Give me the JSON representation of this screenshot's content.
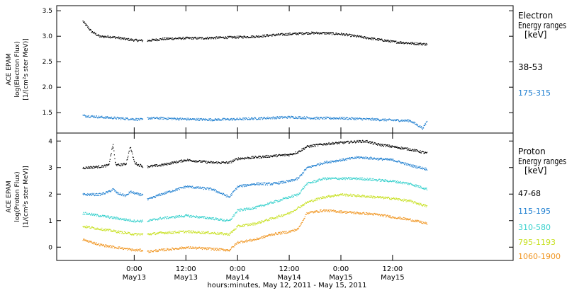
{
  "chart_data": [
    {
      "type": "scatter",
      "panel": "electron",
      "ylabel_lines": [
        "ACE EPAM",
        "log(Electron Flux)",
        "[1/(cm²s ster MeV)]"
      ],
      "ylim": [
        1.1,
        3.6
      ],
      "yticks": [
        "1.5",
        "2.0",
        "2.5",
        "3.0",
        "3.5"
      ],
      "ytick_values": [
        1.5,
        2.0,
        2.5,
        3.0,
        3.5
      ],
      "legend_title": [
        "Electron",
        "Energy ranges",
        "[keV]"
      ],
      "series": [
        {
          "name": "38-53",
          "color": "#000000",
          "x": [
            0,
            1,
            2,
            3,
            4,
            6,
            8,
            10,
            12,
            14,
            15,
            16,
            17,
            18,
            20,
            24,
            28,
            32,
            36,
            40,
            44,
            48,
            52,
            56,
            60,
            64,
            68,
            72,
            76,
            80
          ],
          "y": [
            3.3,
            3.2,
            3.1,
            3.05,
            3.0,
            3.0,
            2.98,
            2.95,
            2.93,
            2.92,
            2.92,
            2.93,
            2.94,
            2.95,
            2.96,
            2.97,
            2.97,
            2.98,
            2.99,
            3.0,
            3.03,
            3.05,
            3.07,
            3.07,
            3.05,
            3.0,
            2.95,
            2.9,
            2.87,
            2.85
          ]
        },
        {
          "name": "175-315",
          "color": "#1f7fd0",
          "x": [
            0,
            4,
            8,
            12,
            14,
            15,
            18,
            24,
            30,
            36,
            42,
            48,
            54,
            60,
            66,
            72,
            76,
            79,
            80
          ],
          "y": [
            1.45,
            1.42,
            1.4,
            1.38,
            1.37,
            1.4,
            1.4,
            1.38,
            1.37,
            1.38,
            1.4,
            1.42,
            1.4,
            1.4,
            1.38,
            1.36,
            1.35,
            1.2,
            1.36
          ]
        }
      ]
    },
    {
      "type": "scatter",
      "panel": "proton",
      "ylabel_lines": [
        "ACE EPAM",
        "log(Proton Flux)",
        "[1/(cm²s ster MeV)]"
      ],
      "ylim": [
        -0.5,
        4.3
      ],
      "yticks": [
        "0",
        "1",
        "2",
        "3",
        "4"
      ],
      "ytick_values": [
        0,
        1,
        2,
        3,
        4
      ],
      "legend_title": [
        "Proton",
        "Energy ranges",
        "[keV]"
      ],
      "series": [
        {
          "name": "47-68",
          "color": "#000000",
          "x": [
            0,
            4,
            6,
            7,
            7.5,
            8,
            10,
            11,
            12,
            13,
            13.5,
            14,
            15,
            18,
            24,
            30,
            34,
            36,
            40,
            44,
            48,
            50,
            52,
            56,
            60,
            64,
            66,
            68,
            72,
            76,
            80
          ],
          "y": [
            3.0,
            3.05,
            3.1,
            3.9,
            3.2,
            3.1,
            3.15,
            3.8,
            3.2,
            3.1,
            3.1,
            3.05,
            3.05,
            3.1,
            3.3,
            3.2,
            3.2,
            3.35,
            3.4,
            3.45,
            3.5,
            3.6,
            3.8,
            3.9,
            3.95,
            4.0,
            4.0,
            3.9,
            3.8,
            3.7,
            3.55
          ]
        },
        {
          "name": "115-195",
          "color": "#1f7fd0",
          "x": [
            0,
            4,
            6,
            7,
            8,
            10,
            11,
            12,
            13,
            14,
            15,
            18,
            24,
            30,
            34,
            36,
            40,
            44,
            48,
            50,
            52,
            56,
            60,
            64,
            68,
            72,
            76,
            80
          ],
          "y": [
            2.0,
            2.0,
            2.1,
            2.2,
            2.05,
            1.95,
            2.1,
            2.05,
            2.0,
            2.0,
            1.8,
            2.0,
            2.3,
            2.2,
            1.9,
            2.3,
            2.4,
            2.4,
            2.5,
            2.6,
            3.0,
            3.2,
            3.3,
            3.4,
            3.35,
            3.3,
            3.1,
            2.95
          ]
        },
        {
          "name": "310-580",
          "color": "#35d0cc",
          "x": [
            0,
            4,
            8,
            12,
            14,
            15,
            18,
            24,
            30,
            34,
            36,
            40,
            44,
            48,
            50,
            52,
            56,
            60,
            64,
            68,
            72,
            76,
            80
          ],
          "y": [
            1.3,
            1.2,
            1.1,
            1.0,
            1.0,
            1.0,
            1.1,
            1.2,
            1.1,
            1.0,
            1.4,
            1.5,
            1.7,
            1.9,
            2.0,
            2.4,
            2.6,
            2.6,
            2.6,
            2.55,
            2.5,
            2.4,
            2.2
          ]
        },
        {
          "name": "795-1193",
          "color": "#c7e020",
          "x": [
            0,
            4,
            8,
            12,
            14,
            15,
            18,
            24,
            30,
            34,
            36,
            40,
            44,
            48,
            50,
            52,
            56,
            60,
            64,
            68,
            72,
            76,
            80
          ],
          "y": [
            0.8,
            0.7,
            0.6,
            0.5,
            0.5,
            0.5,
            0.55,
            0.6,
            0.55,
            0.5,
            0.8,
            0.9,
            1.1,
            1.3,
            1.5,
            1.7,
            1.9,
            2.0,
            1.95,
            1.9,
            1.85,
            1.75,
            1.55
          ]
        },
        {
          "name": "1060-1900",
          "color": "#f0941e",
          "x": [
            0,
            4,
            8,
            12,
            14,
            15,
            18,
            24,
            30,
            34,
            36,
            40,
            44,
            48,
            50,
            52,
            56,
            60,
            64,
            68,
            72,
            76,
            80
          ],
          "y": [
            0.3,
            0.1,
            0.0,
            -0.1,
            -0.1,
            -0.15,
            -0.1,
            0.0,
            -0.05,
            -0.1,
            0.2,
            0.3,
            0.5,
            0.6,
            0.7,
            1.3,
            1.4,
            1.35,
            1.3,
            1.25,
            1.15,
            1.05,
            0.9
          ]
        }
      ]
    }
  ],
  "x_axis": {
    "range_hours": [
      -6,
      100
    ],
    "ticks": [
      {
        "x": 12,
        "time": "0:00",
        "date": "May13"
      },
      {
        "x": 24,
        "time": "12:00",
        "date": "May13"
      },
      {
        "x": 36,
        "time": "0:00",
        "date": "May14"
      },
      {
        "x": 48,
        "time": "12:00",
        "date": "May14"
      },
      {
        "x": 60,
        "time": "0:00",
        "date": "May15"
      },
      {
        "x": 72,
        "time": "12:00",
        "date": "May15"
      }
    ],
    "label": "hours:minutes, May 12, 2011 - May 15, 2011"
  }
}
